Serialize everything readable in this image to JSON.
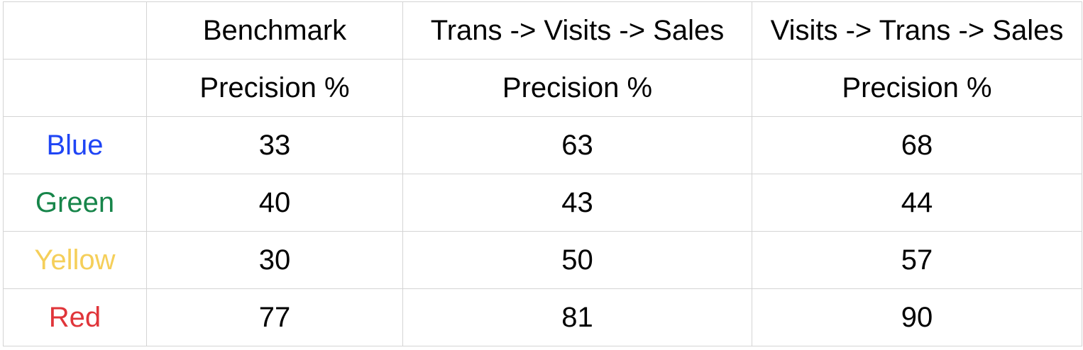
{
  "chart_data": {
    "type": "table",
    "columns": [
      "Benchmark",
      "Trans -> Visits -> Sales",
      "Visits -> Trans -> Sales"
    ],
    "metric": "Precision %",
    "rows": [
      {
        "label": "Blue",
        "color": "#1f45f5",
        "values": [
          "33",
          "63",
          "68"
        ]
      },
      {
        "label": "Green",
        "color": "#17854a",
        "values": [
          "40",
          "43",
          "44"
        ]
      },
      {
        "label": "Yellow",
        "color": "#f5cf5a",
        "values": [
          "30",
          "50",
          "57"
        ]
      },
      {
        "label": "Red",
        "color": "#e0353a",
        "values": [
          "77",
          "81",
          "90"
        ]
      }
    ]
  }
}
